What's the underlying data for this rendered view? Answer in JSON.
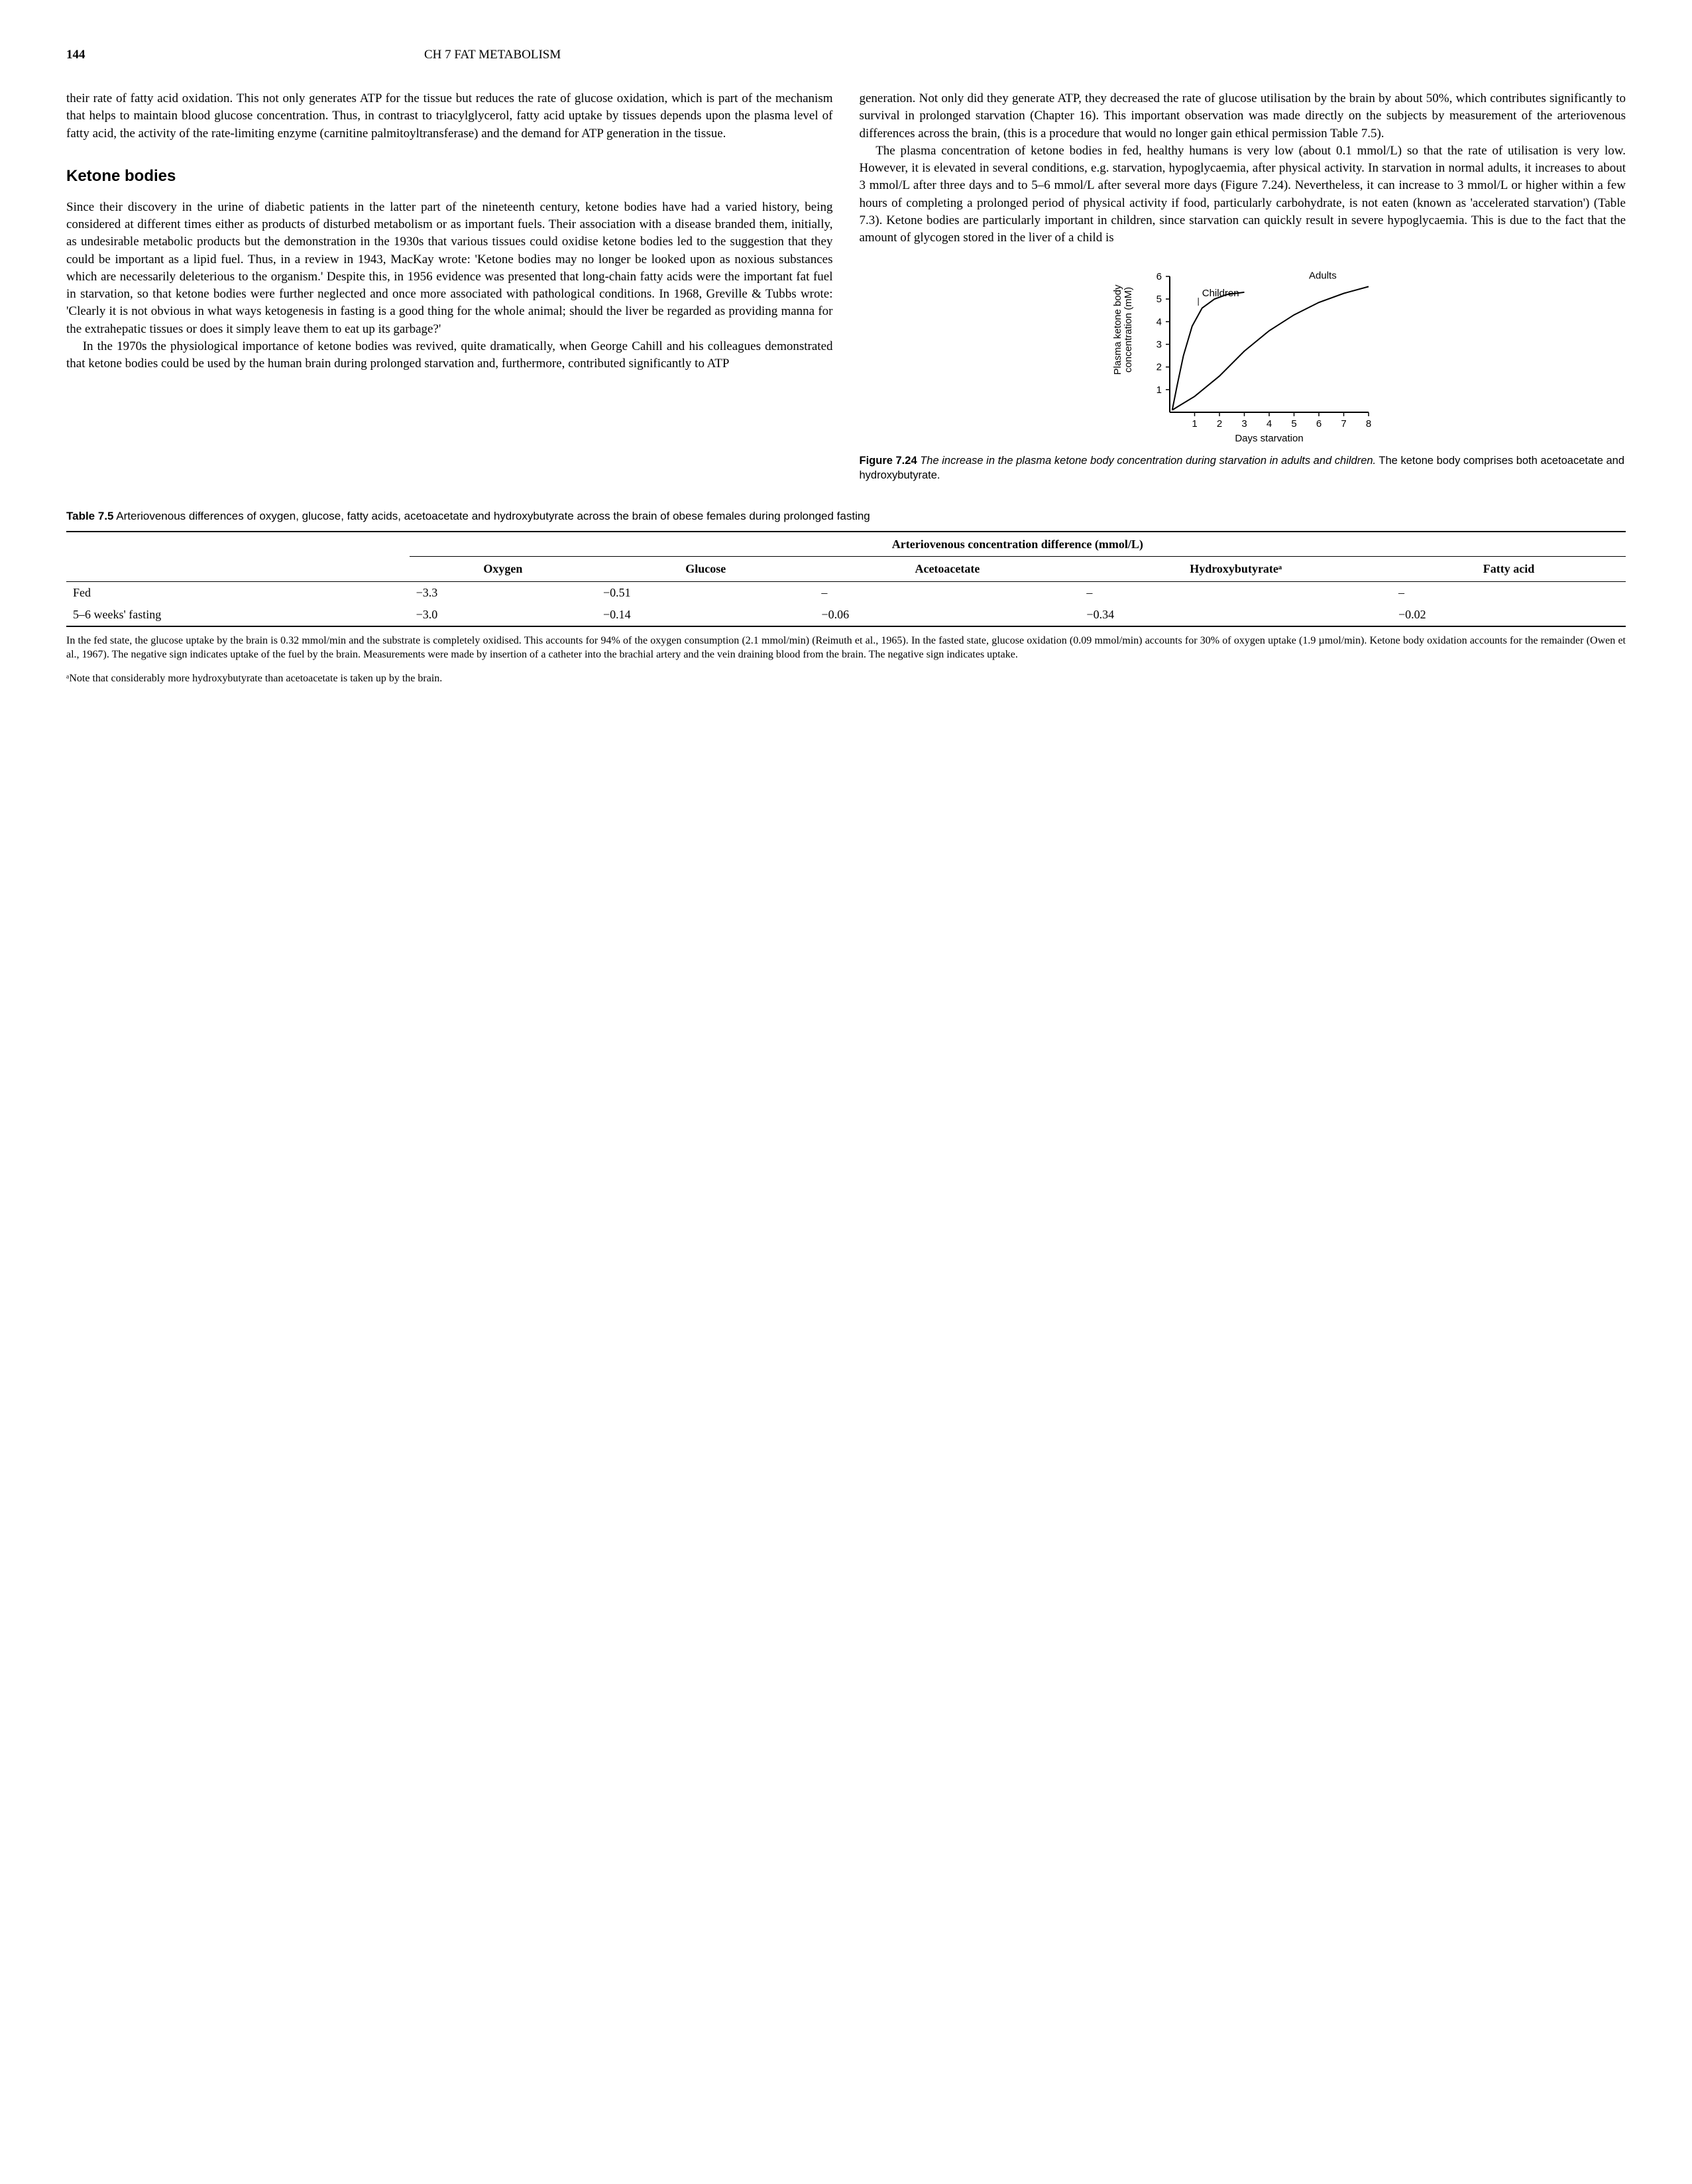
{
  "header": {
    "page_number": "144",
    "chapter": "CH 7   FAT METABOLISM"
  },
  "left_col": {
    "intro": "their rate of fatty acid oxidation. This not only generates ATP for the tissue but reduces the rate of glucose oxidation, which is part of the mechanism that helps to maintain blood glucose concentration. Thus, in contrast to triacylglycerol, fatty acid uptake by tissues depends upon the plasma level of fatty acid, the activity of the rate-limiting enzyme (carnitine palmitoyltransferase) and the demand for ATP generation in the tissue.",
    "section_title": "Ketone bodies",
    "p1": "Since their discovery in the urine of diabetic patients in the latter part of the nineteenth century, ketone bodies have had a varied history, being considered at different times either as products of disturbed metabolism or as important fuels. Their association with a disease branded them, initially, as undesirable metabolic products but the demonstration in the 1930s that various tissues could oxidise ketone bodies led to the suggestion that they could be important as a lipid fuel. Thus, in a review in 1943, MacKay wrote: 'Ketone bodies may no longer be looked upon as noxious substances which are necessarily deleterious to the organism.' Despite this, in 1956 evidence was presented that long-chain fatty acids were the important fat fuel in starvation, so that ketone bodies were further neglected and once more associated with pathological conditions. In 1968, Greville & Tubbs wrote: 'Clearly it is not obvious in what ways ketogenesis in fasting is a good thing for the whole animal; should the liver be regarded as providing manna for the extrahepatic tissues or does it simply leave them to eat up its garbage?'",
    "p2": "In the 1970s the physiological importance of ketone bodies was revived, quite dramatically, when George Cahill and his colleagues demonstrated that ketone bodies could be used by the human brain during prolonged starvation and, furthermore, contributed significantly to ATP"
  },
  "right_col": {
    "p1": "generation. Not only did they generate ATP, they decreased the rate of glucose utilisation by the brain by about 50%, which contributes significantly to survival in prolonged starvation (Chapter 16). This important observation was made directly on the subjects by measurement of the arteriovenous differences across the brain, (this is a procedure that would no longer gain ethical permission Table 7.5).",
    "p2": "The plasma concentration of ketone bodies in fed, healthy humans is very low (about 0.1 mmol/L) so that the rate of utilisation is very low. However, it is elevated in several conditions, e.g. starvation, hypoglycaemia, after physical activity. In starvation in normal adults, it increases to about 3 mmol/L after three days and to 5–6 mmol/L after several more days (Figure 7.24). Nevertheless, it can increase to 3 mmol/L or higher within a few hours of completing a prolonged period of physical activity if food, particularly carbohydrate, is not eaten (known as 'accelerated starvation') (Table 7.3). Ketone bodies are particularly important in children, since starvation can quickly result in severe hypoglycaemia. This is due to the fact that the amount of glycogen stored in the liver of a child is"
  },
  "figure": {
    "number": "Figure 7.24",
    "caption_italic": "The increase in the plasma ketone body concentration during starvation in adults and children.",
    "caption_rest": " The ketone body comprises both acetoacetate and hydroxybutyrate.",
    "y_label": "Plasma ketone body\nconcentration (mM)",
    "x_label": "Days starvation",
    "series_labels": {
      "children": "Children",
      "adults": "Adults"
    },
    "xlim": [
      0,
      8
    ],
    "ylim": [
      0,
      6
    ],
    "xticks": [
      1,
      2,
      3,
      4,
      5,
      6,
      7,
      8
    ],
    "yticks": [
      1,
      2,
      3,
      4,
      5,
      6
    ],
    "line_color": "#000000",
    "line_width": 2,
    "axis_color": "#000000",
    "background_color": "#ffffff",
    "label_fontsize": 15,
    "tick_fontsize": 15,
    "children_curve": [
      [
        0.1,
        0.1
      ],
      [
        0.3,
        1.2
      ],
      [
        0.55,
        2.5
      ],
      [
        0.9,
        3.8
      ],
      [
        1.3,
        4.6
      ],
      [
        1.8,
        5.0
      ],
      [
        2.3,
        5.2
      ],
      [
        3.0,
        5.3
      ]
    ],
    "adults_curve": [
      [
        0.1,
        0.1
      ],
      [
        1.0,
        0.7
      ],
      [
        2.0,
        1.6
      ],
      [
        3.0,
        2.7
      ],
      [
        4.0,
        3.6
      ],
      [
        5.0,
        4.3
      ],
      [
        6.0,
        4.85
      ],
      [
        7.0,
        5.25
      ],
      [
        8.0,
        5.55
      ]
    ]
  },
  "table": {
    "number": "Table 7.5",
    "title_rest": " Arteriovenous differences of oxygen, glucose, fatty acids, acetoacetate and hydroxybutyrate across the brain of obese females during prolonged fasting",
    "group_header": "Arteriovenous concentration difference (mmol/L)",
    "columns": [
      "",
      "Oxygen",
      "Glucose",
      "Acetoacetate",
      "Hydroxybutyrateᵃ",
      "Fatty acid"
    ],
    "col_widths": [
      "22%",
      "12%",
      "14%",
      "17%",
      "20%",
      "15%"
    ],
    "rows": [
      [
        "Fed",
        "−3.3",
        "−0.51",
        "–",
        "–",
        "–"
      ],
      [
        "5–6 weeks' fasting",
        "−3.0",
        "−0.14",
        "−0.06",
        "−0.34",
        "−0.02"
      ]
    ],
    "footnote": "In the fed state, the glucose uptake by the brain is 0.32 mmol/min and the substrate is completely oxidised. This accounts for 94% of the oxygen consumption (2.1 mmol/min) (Reimuth et al., 1965). In the fasted state, glucose oxidation (0.09 mmol/min) accounts for 30% of oxygen uptake (1.9 µmol/min). Ketone body oxidation accounts for the remainder (Owen et al., 1967). The negative sign indicates uptake of the fuel by the brain. Measurements were made by insertion of a catheter into the brachial artery and the vein draining blood from the brain. The negative sign indicates uptake.",
    "note": "ᵃNote that considerably more hydroxybutyrate than acetoacetate is taken up by the brain."
  }
}
